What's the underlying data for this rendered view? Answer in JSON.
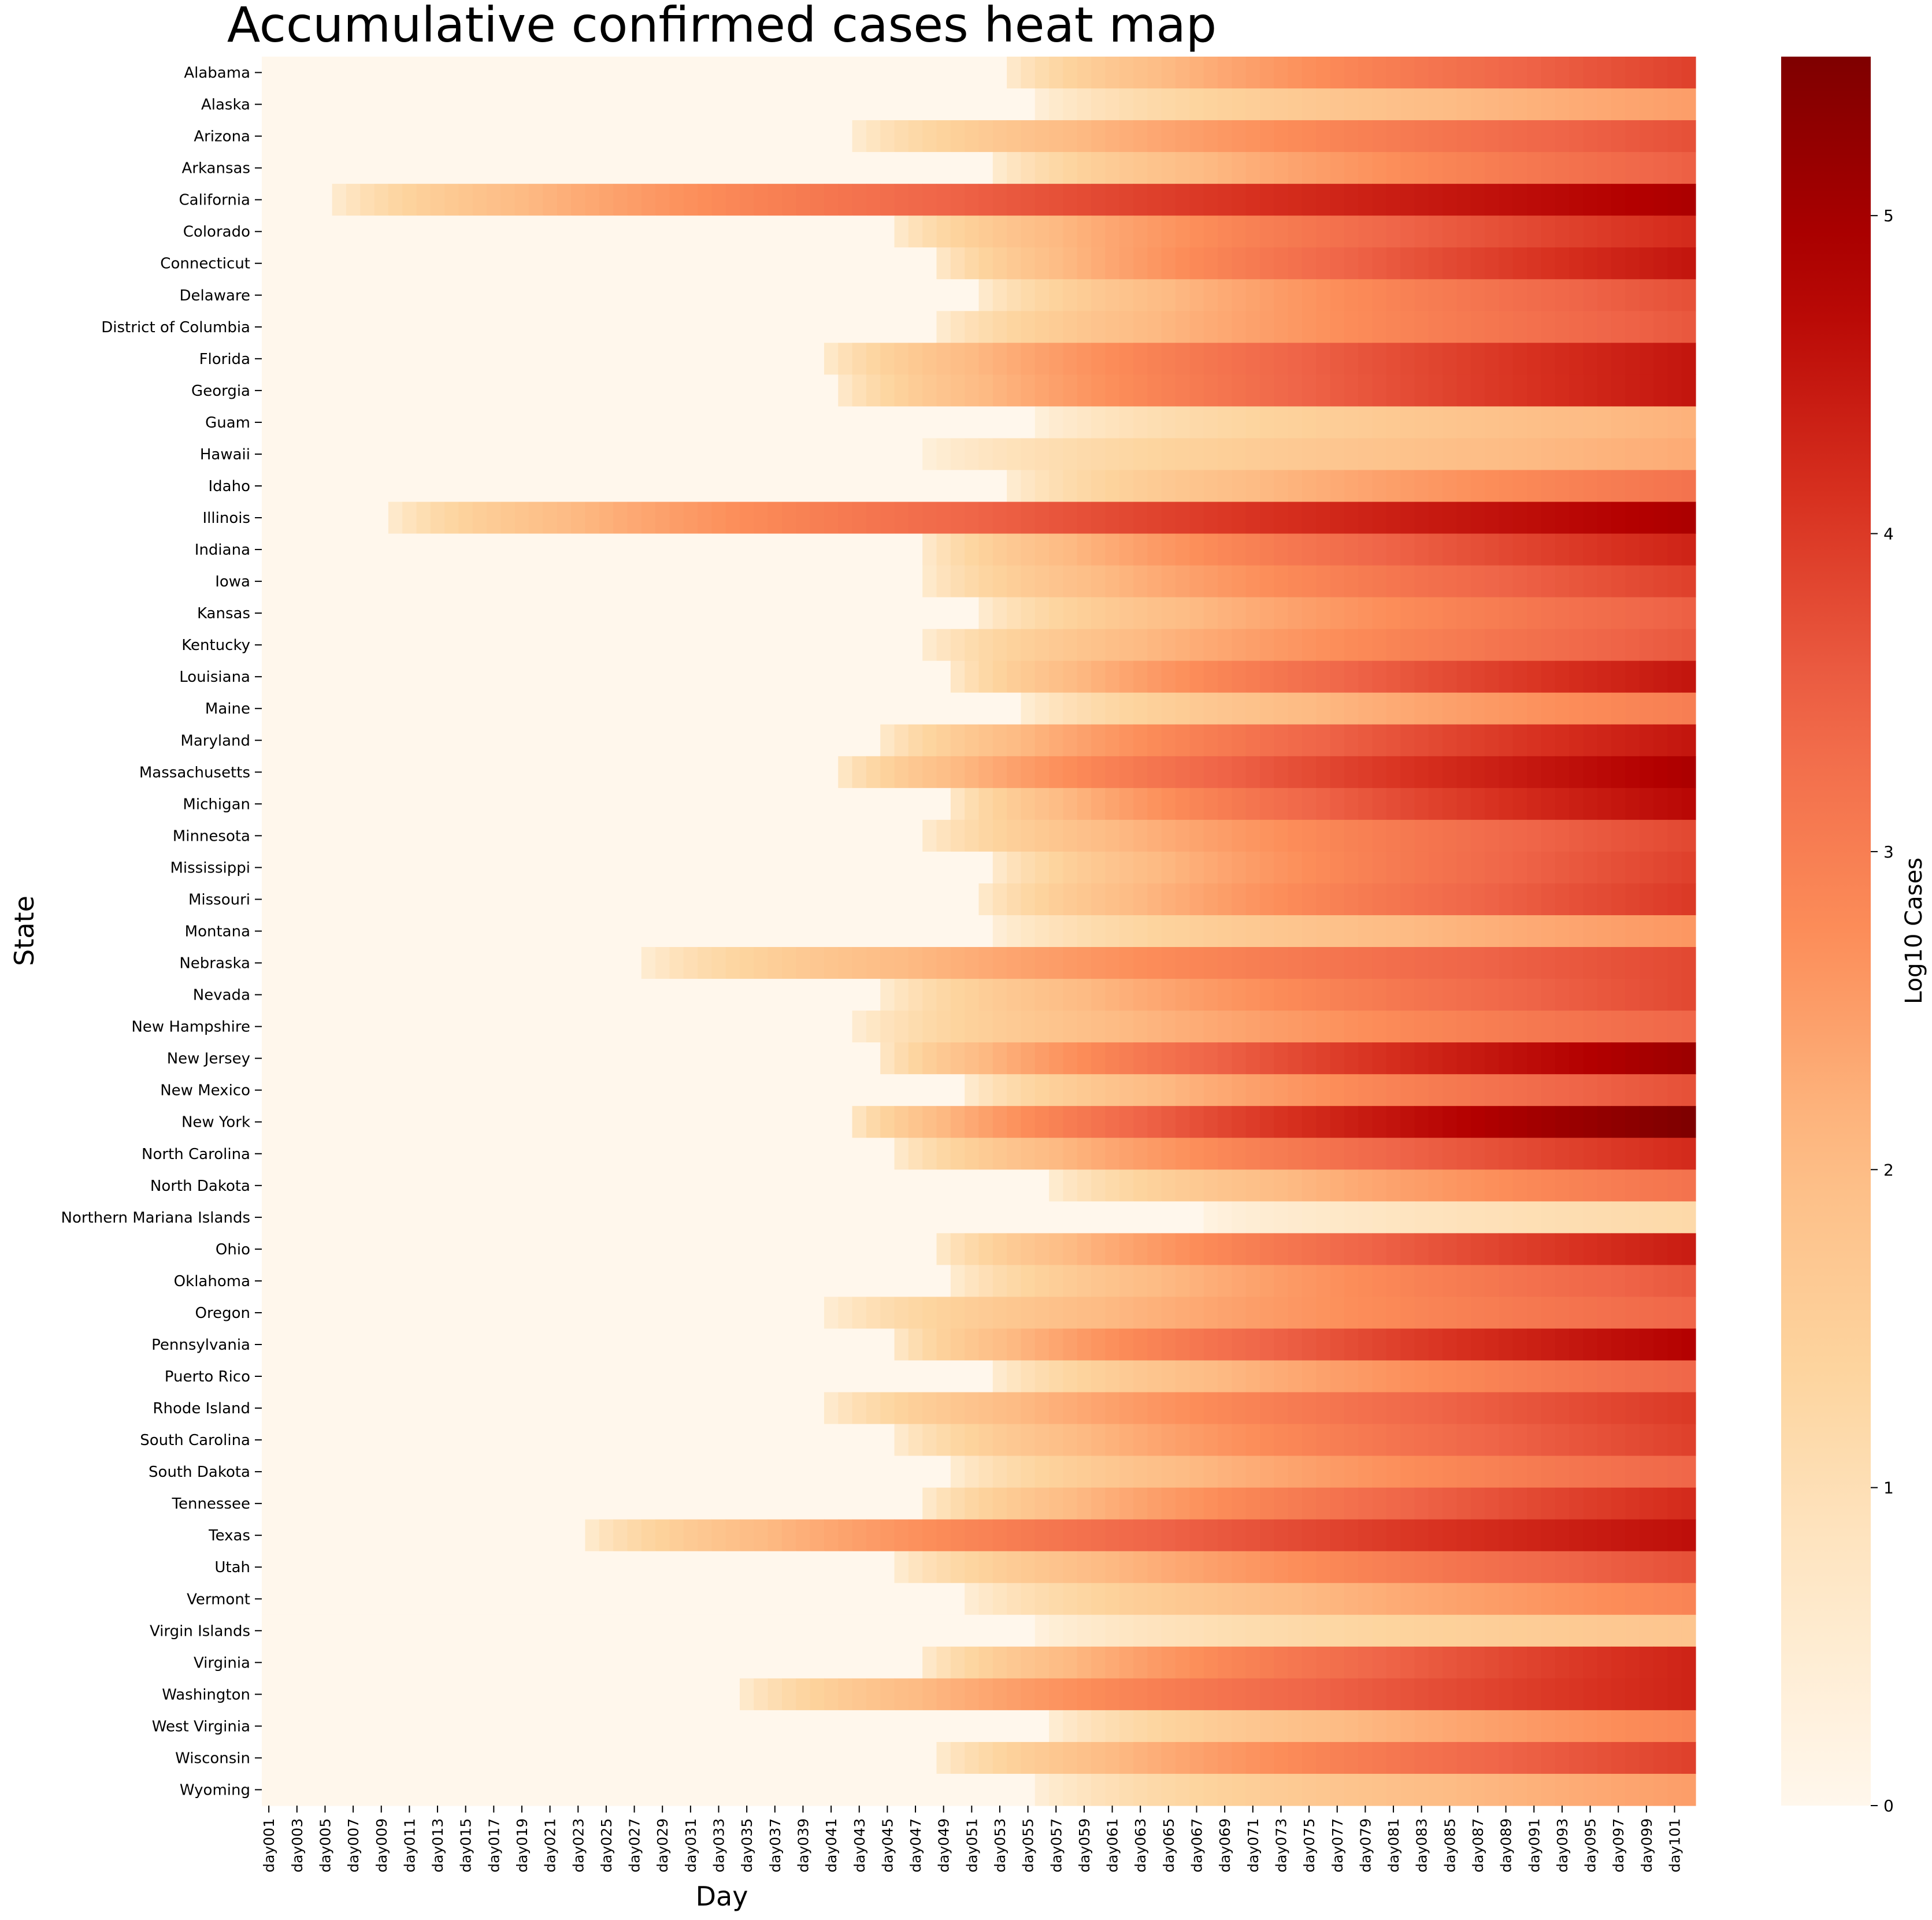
{
  "chart_data": {
    "type": "heatmap",
    "title": "Accumulative confirmed cases heat map",
    "xlabel": "Day",
    "ylabel": "State",
    "colorbar": {
      "label": "Log10 Cases",
      "range": [
        0,
        5.5
      ],
      "ticks": [
        "0",
        "1",
        "2",
        "3",
        "4",
        "5"
      ],
      "colormap": "OrRd"
    },
    "day_count": 102,
    "x_tick_labels": [
      "day001",
      "day003",
      "day005",
      "day007",
      "day009",
      "day011",
      "day013",
      "day015",
      "day017",
      "day019",
      "day021",
      "day023",
      "day025",
      "day027",
      "day029",
      "day031",
      "day033",
      "day035",
      "day037",
      "day039",
      "day041",
      "day043",
      "day045",
      "day047",
      "day049",
      "day051",
      "day053",
      "day055",
      "day057",
      "day059",
      "day061",
      "day063",
      "day065",
      "day067",
      "day069",
      "day071",
      "day073",
      "day075",
      "day077",
      "day079",
      "day081",
      "day083",
      "day085",
      "day087",
      "day089",
      "day091",
      "day093",
      "day095",
      "day097",
      "day099",
      "day101"
    ],
    "states": [
      {
        "name": "Alabama",
        "start": 53,
        "end": 3.9
      },
      {
        "name": "Alaska",
        "start": 55,
        "end": 2.5
      },
      {
        "name": "Arizona",
        "start": 42,
        "end": 3.7
      },
      {
        "name": "Arkansas",
        "start": 52,
        "end": 3.5
      },
      {
        "name": "California",
        "start": 5,
        "end": 4.9
      },
      {
        "name": "Colorado",
        "start": 45,
        "end": 4.2
      },
      {
        "name": "Connecticut",
        "start": 48,
        "end": 4.5
      },
      {
        "name": "Delaware",
        "start": 51,
        "end": 3.7
      },
      {
        "name": "District of Columbia",
        "start": 48,
        "end": 3.6
      },
      {
        "name": "Florida",
        "start": 40,
        "end": 4.5
      },
      {
        "name": "Georgia",
        "start": 41,
        "end": 4.5
      },
      {
        "name": "Guam",
        "start": 55,
        "end": 2.2
      },
      {
        "name": "Hawaii",
        "start": 47,
        "end": 2.3
      },
      {
        "name": "Idaho",
        "start": 53,
        "end": 3.2
      },
      {
        "name": "Illinois",
        "start": 9,
        "end": 4.9
      },
      {
        "name": "Indiana",
        "start": 47,
        "end": 4.3
      },
      {
        "name": "Iowa",
        "start": 47,
        "end": 3.9
      },
      {
        "name": "Kansas",
        "start": 51,
        "end": 3.5
      },
      {
        "name": "Kentucky",
        "start": 47,
        "end": 3.6
      },
      {
        "name": "Louisiana",
        "start": 49,
        "end": 4.5
      },
      {
        "name": "Maine",
        "start": 54,
        "end": 3.0
      },
      {
        "name": "Maryland",
        "start": 44,
        "end": 4.5
      },
      {
        "name": "Massachusetts",
        "start": 41,
        "end": 4.9
      },
      {
        "name": "Michigan",
        "start": 49,
        "end": 4.7
      },
      {
        "name": "Minnesota",
        "start": 47,
        "end": 3.8
      },
      {
        "name": "Mississippi",
        "start": 52,
        "end": 3.9
      },
      {
        "name": "Missouri",
        "start": 51,
        "end": 4.0
      },
      {
        "name": "Montana",
        "start": 52,
        "end": 2.6
      },
      {
        "name": "Nebraska",
        "start": 27,
        "end": 3.8
      },
      {
        "name": "Nevada",
        "start": 44,
        "end": 3.8
      },
      {
        "name": "New Hampshire",
        "start": 42,
        "end": 3.4
      },
      {
        "name": "New Jersey",
        "start": 44,
        "end": 5.1
      },
      {
        "name": "New Mexico",
        "start": 50,
        "end": 3.7
      },
      {
        "name": "New York",
        "start": 42,
        "end": 5.5
      },
      {
        "name": "North Carolina",
        "start": 45,
        "end": 4.2
      },
      {
        "name": "North Dakota",
        "start": 56,
        "end": 3.2
      },
      {
        "name": "Northern Mariana Islands",
        "start": 67,
        "end": 1.2
      },
      {
        "name": "Ohio",
        "start": 48,
        "end": 4.4
      },
      {
        "name": "Oklahoma",
        "start": 49,
        "end": 3.6
      },
      {
        "name": "Oregon",
        "start": 40,
        "end": 3.4
      },
      {
        "name": "Pennsylvania",
        "start": 45,
        "end": 4.8
      },
      {
        "name": "Puerto Rico",
        "start": 52,
        "end": 3.4
      },
      {
        "name": "Rhode Island",
        "start": 40,
        "end": 4.0
      },
      {
        "name": "South Carolina",
        "start": 45,
        "end": 3.9
      },
      {
        "name": "South Dakota",
        "start": 49,
        "end": 3.4
      },
      {
        "name": "Tennessee",
        "start": 47,
        "end": 4.2
      },
      {
        "name": "Texas",
        "start": 23,
        "end": 4.6
      },
      {
        "name": "Utah",
        "start": 45,
        "end": 3.7
      },
      {
        "name": "Vermont",
        "start": 50,
        "end": 2.9
      },
      {
        "name": "Virgin Islands",
        "start": 55,
        "end": 1.8
      },
      {
        "name": "Virginia",
        "start": 47,
        "end": 4.3
      },
      {
        "name": "Washington",
        "start": 34,
        "end": 4.3
      },
      {
        "name": "West Virginia",
        "start": 56,
        "end": 2.9
      },
      {
        "name": "Wisconsin",
        "start": 48,
        "end": 3.9
      },
      {
        "name": "Wyoming",
        "start": 55,
        "end": 2.5
      }
    ]
  }
}
